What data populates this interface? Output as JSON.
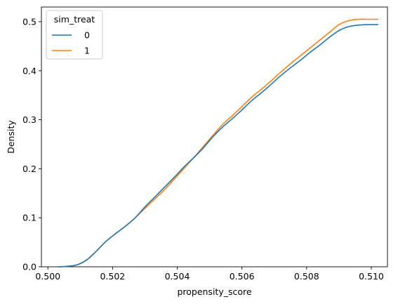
{
  "chart_data": {
    "type": "line",
    "xlabel": "propensity_score",
    "ylabel": "Density",
    "xlim": [
      0.4998,
      0.5105
    ],
    "ylim": [
      0,
      0.53
    ],
    "xticks": [
      0.5,
      0.502,
      0.504,
      0.506,
      0.508,
      0.51
    ],
    "xtick_labels": [
      "0.500",
      "0.502",
      "0.504",
      "0.506",
      "0.508",
      "0.510"
    ],
    "yticks": [
      0.0,
      0.1,
      0.2,
      0.3,
      0.4,
      0.5
    ],
    "ytick_labels": [
      "0.0",
      "0.1",
      "0.2",
      "0.3",
      "0.4",
      "0.5"
    ],
    "grid": false,
    "legend": {
      "title": "sim_treat",
      "placement": "top-left"
    },
    "series": [
      {
        "name": "0",
        "color": "#1f77b4",
        "points": [
          [
            0.5003,
            0.0
          ],
          [
            0.5006,
            0.001
          ],
          [
            0.5009,
            0.004
          ],
          [
            0.5012,
            0.014
          ],
          [
            0.5015,
            0.032
          ],
          [
            0.5018,
            0.052
          ],
          [
            0.5021,
            0.068
          ],
          [
            0.5024,
            0.083
          ],
          [
            0.5027,
            0.1
          ],
          [
            0.503,
            0.122
          ],
          [
            0.5033,
            0.142
          ],
          [
            0.5036,
            0.162
          ],
          [
            0.5039,
            0.182
          ],
          [
            0.5042,
            0.203
          ],
          [
            0.5045,
            0.222
          ],
          [
            0.5048,
            0.242
          ],
          [
            0.5051,
            0.265
          ],
          [
            0.5054,
            0.285
          ],
          [
            0.5057,
            0.302
          ],
          [
            0.506,
            0.32
          ],
          [
            0.5063,
            0.339
          ],
          [
            0.5066,
            0.355
          ],
          [
            0.5069,
            0.372
          ],
          [
            0.5072,
            0.39
          ],
          [
            0.5075,
            0.406
          ],
          [
            0.5078,
            0.421
          ],
          [
            0.5081,
            0.437
          ],
          [
            0.5084,
            0.452
          ],
          [
            0.5087,
            0.468
          ],
          [
            0.509,
            0.482
          ],
          [
            0.5093,
            0.49
          ],
          [
            0.5096,
            0.493
          ],
          [
            0.5099,
            0.494
          ],
          [
            0.5102,
            0.494
          ]
        ]
      },
      {
        "name": "1",
        "color": "#ff7f0e",
        "points": [
          [
            0.5003,
            0.0
          ],
          [
            0.5006,
            0.001
          ],
          [
            0.5009,
            0.004
          ],
          [
            0.5012,
            0.014
          ],
          [
            0.5015,
            0.032
          ],
          [
            0.5018,
            0.052
          ],
          [
            0.5021,
            0.068
          ],
          [
            0.5024,
            0.083
          ],
          [
            0.5027,
            0.1
          ],
          [
            0.503,
            0.119
          ],
          [
            0.5033,
            0.138
          ],
          [
            0.5036,
            0.157
          ],
          [
            0.5039,
            0.178
          ],
          [
            0.5042,
            0.2
          ],
          [
            0.5045,
            0.222
          ],
          [
            0.5048,
            0.245
          ],
          [
            0.5051,
            0.268
          ],
          [
            0.5054,
            0.29
          ],
          [
            0.5057,
            0.308
          ],
          [
            0.506,
            0.327
          ],
          [
            0.5063,
            0.346
          ],
          [
            0.5066,
            0.362
          ],
          [
            0.5069,
            0.379
          ],
          [
            0.5072,
            0.397
          ],
          [
            0.5075,
            0.414
          ],
          [
            0.5078,
            0.43
          ],
          [
            0.5081,
            0.446
          ],
          [
            0.5084,
            0.462
          ],
          [
            0.5087,
            0.478
          ],
          [
            0.509,
            0.494
          ],
          [
            0.5093,
            0.502
          ],
          [
            0.5096,
            0.505
          ],
          [
            0.5099,
            0.505
          ],
          [
            0.5102,
            0.505
          ]
        ]
      }
    ]
  }
}
